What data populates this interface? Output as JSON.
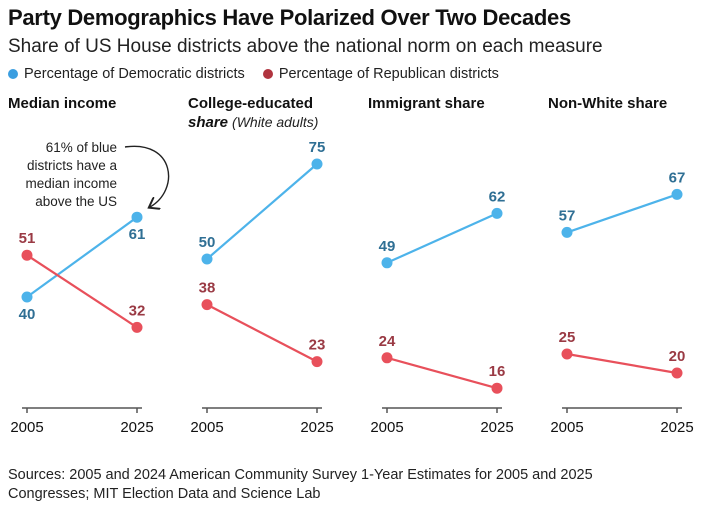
{
  "header": {
    "title": "Party Demographics Have Polarized Over Two Decades",
    "subtitle": "Share of US House districts above the national norm on each measure"
  },
  "legend": [
    {
      "label": "Percentage of Democratic districts",
      "color": "#3b9ee0"
    },
    {
      "label": "Percentage of Republican districts",
      "color": "#b0343f"
    }
  ],
  "colors": {
    "dem_line": "#4db3ea",
    "dem_label": "#2f6f94",
    "rep_line": "#e8505b",
    "rep_label": "#9a3a44",
    "axis": "#555555"
  },
  "footer": {
    "line1": "Sources: 2005 and 2024 American Community Survey 1-Year Estimates for 2005 and 2025",
    "line2": "Congresses; MIT Election Data and Science Lab"
  },
  "chart_data": {
    "type": "line",
    "title": "Party Demographics Have Polarized Over Two Decades",
    "subtitle": "Share of US House districts above the national norm on each measure",
    "x": [
      "2005",
      "2025"
    ],
    "ylim": [
      0,
      100
    ],
    "grid": false,
    "legend_position": "top-left",
    "panels": [
      {
        "title": "Median income",
        "note": "",
        "series": [
          {
            "name": "Percentage of Democratic districts",
            "values": [
              40,
              61
            ]
          },
          {
            "name": "Percentage of Republican districts",
            "values": [
              51,
              32
            ]
          }
        ],
        "annotation": [
          "61% of blue",
          "districts have a",
          "median income",
          "above the US"
        ]
      },
      {
        "title": "College-educated",
        "title2": "share",
        "note": "(White adults)",
        "series": [
          {
            "name": "Percentage of Democratic districts",
            "values": [
              50,
              75
            ]
          },
          {
            "name": "Percentage of Republican districts",
            "values": [
              38,
              23
            ]
          }
        ]
      },
      {
        "title": "Immigrant share",
        "note": "",
        "series": [
          {
            "name": "Percentage of Democratic districts",
            "values": [
              49,
              62
            ]
          },
          {
            "name": "Percentage of Republican districts",
            "values": [
              24,
              16
            ]
          }
        ]
      },
      {
        "title": "Non-White share",
        "note": "",
        "series": [
          {
            "name": "Percentage of Democratic districts",
            "values": [
              57,
              67
            ]
          },
          {
            "name": "Percentage of Republican districts",
            "values": [
              25,
              20
            ]
          }
        ]
      }
    ]
  }
}
